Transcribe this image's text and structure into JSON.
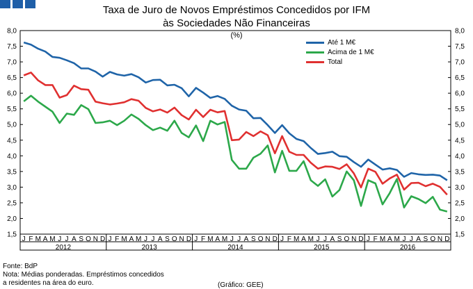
{
  "header": {
    "title_line1": "Taxa de Juro de Novos Empréstimos Concedidos por IFM",
    "title_line2": "às Sociedades Não Financeiras",
    "unit": "(%)"
  },
  "footer": {
    "source": "Fonte: BdP",
    "note_line1": "Nota: Médias ponderadas. Empréstimos concedidos",
    "note_line2": "a residentes na área do euro.",
    "credit": "(Gráfico: GEE)"
  },
  "chart_data": {
    "type": "line",
    "ylim": [
      1.5,
      8.0
    ],
    "yticks": [
      "1,5",
      "2,0",
      "2,5",
      "3,0",
      "3,5",
      "4,0",
      "4,5",
      "5,0",
      "5,5",
      "6,0",
      "6,5",
      "7,0",
      "7,5",
      "8,0"
    ],
    "grid": false,
    "legend_position": "top-right",
    "month_labels": [
      "J",
      "F",
      "M",
      "A",
      "M",
      "J",
      "J",
      "A",
      "S",
      "O",
      "N",
      "D"
    ],
    "years": [
      "2012",
      "2013",
      "2014",
      "2015",
      "2016"
    ],
    "series": [
      {
        "name": "Até 1 M€",
        "color": "#1f64a8",
        "values": [
          7.62,
          7.55,
          7.42,
          7.33,
          7.16,
          7.13,
          7.05,
          6.96,
          6.79,
          6.79,
          6.69,
          6.53,
          6.68,
          6.6,
          6.56,
          6.61,
          6.51,
          6.34,
          6.42,
          6.43,
          6.25,
          6.27,
          6.16,
          5.9,
          6.17,
          6.02,
          5.85,
          5.91,
          5.82,
          5.6,
          5.48,
          5.44,
          5.2,
          5.21,
          4.98,
          4.73,
          4.98,
          4.72,
          4.54,
          4.47,
          4.25,
          4.06,
          4.09,
          4.13,
          3.99,
          3.97,
          3.8,
          3.65,
          3.88,
          3.72,
          3.56,
          3.6,
          3.55,
          3.33,
          3.45,
          3.41,
          3.39,
          3.4,
          3.37,
          3.22
        ]
      },
      {
        "name": "Acima de 1 M€",
        "color": "#2ca84a",
        "values": [
          5.74,
          5.92,
          5.73,
          5.57,
          5.41,
          5.05,
          5.35,
          5.31,
          5.62,
          5.49,
          5.05,
          5.07,
          5.12,
          4.98,
          5.12,
          5.32,
          5.18,
          4.98,
          4.82,
          4.9,
          4.8,
          5.12,
          4.73,
          4.59,
          4.97,
          4.47,
          5.12,
          5.0,
          5.08,
          3.87,
          3.59,
          3.59,
          3.94,
          4.07,
          4.33,
          3.47,
          4.16,
          3.52,
          3.52,
          3.83,
          3.22,
          3.04,
          3.25,
          2.7,
          2.91,
          3.5,
          3.22,
          2.4,
          3.22,
          3.12,
          2.45,
          2.81,
          3.26,
          2.35,
          2.71,
          2.62,
          2.49,
          2.69,
          2.28,
          2.22
        ]
      },
      {
        "name": "Total",
        "color": "#e03030",
        "values": [
          6.57,
          6.66,
          6.41,
          6.26,
          6.26,
          5.86,
          5.94,
          6.24,
          6.13,
          6.11,
          5.73,
          5.68,
          5.64,
          5.67,
          5.71,
          5.81,
          5.76,
          5.53,
          5.42,
          5.48,
          5.38,
          5.54,
          5.3,
          5.16,
          5.47,
          5.24,
          5.47,
          5.39,
          5.43,
          4.5,
          4.52,
          4.76,
          4.63,
          4.78,
          4.66,
          4.08,
          4.63,
          4.13,
          4.03,
          4.03,
          3.78,
          3.59,
          3.66,
          3.65,
          3.58,
          3.73,
          3.44,
          2.99,
          3.59,
          3.49,
          3.11,
          3.28,
          3.4,
          2.92,
          3.13,
          3.14,
          3.03,
          3.11,
          3.01,
          2.76
        ]
      }
    ]
  }
}
